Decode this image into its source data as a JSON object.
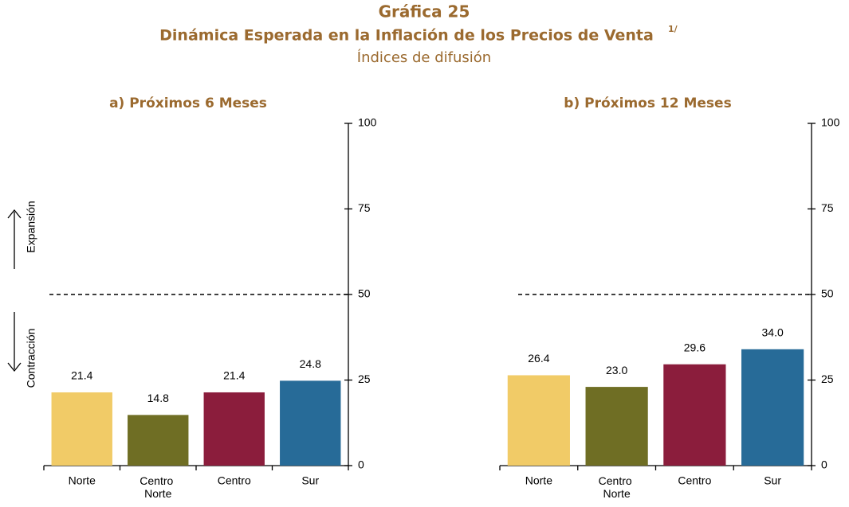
{
  "header": {
    "title": "Gráfica 25",
    "subtitle": "Dinámica Esperada en la Inflación de los Precios de Venta",
    "subtitle_note": "1/",
    "caption": "Índices de difusión"
  },
  "chart_data": [
    {
      "type": "bar",
      "title": "a) Próximos 6 Meses",
      "categories": [
        "Norte",
        "Centro Norte",
        "Centro",
        "Sur"
      ],
      "values": [
        21.4,
        14.8,
        21.4,
        24.8
      ],
      "value_labels": [
        "21.4",
        "14.8",
        "21.4",
        "24.8"
      ],
      "colors": [
        "#f1cb67",
        "#6f6e24",
        "#8b1d3c",
        "#276b98"
      ],
      "ylim": [
        0,
        100
      ],
      "yticks": [
        0,
        25,
        50,
        75,
        100
      ],
      "reference_line": 50,
      "annotations": [
        "Expansión",
        "Contracción"
      ]
    },
    {
      "type": "bar",
      "title": "b) Próximos 12 Meses",
      "categories": [
        "Norte",
        "Centro Norte",
        "Centro",
        "Sur"
      ],
      "values": [
        26.4,
        23.0,
        29.6,
        34.0
      ],
      "value_labels": [
        "26.4",
        "23.0",
        "29.6",
        "34.0"
      ],
      "colors": [
        "#f1cb67",
        "#6f6e24",
        "#8b1d3c",
        "#276b98"
      ],
      "ylim": [
        0,
        100
      ],
      "yticks": [
        0,
        25,
        50,
        75,
        100
      ],
      "reference_line": 50
    }
  ]
}
